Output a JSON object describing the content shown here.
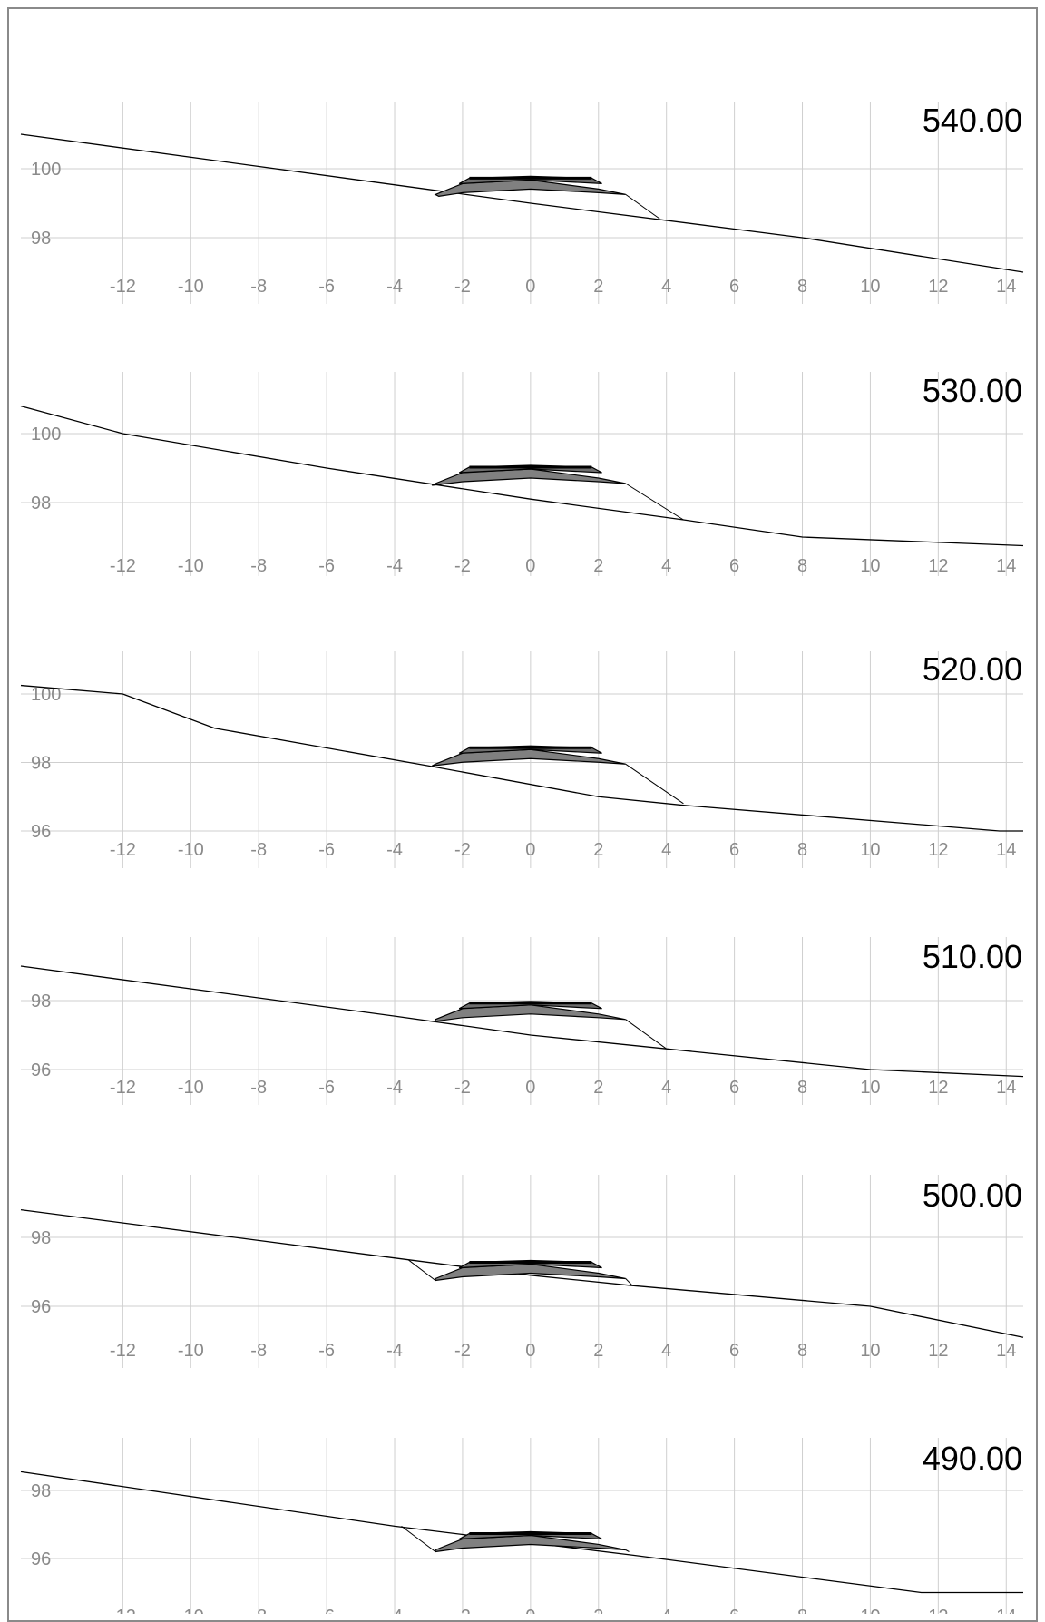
{
  "sections": [
    {
      "station": "540.00",
      "y_ticks": [
        100,
        98
      ],
      "ylim": [
        96.2,
        102.0
      ],
      "ground": [
        [
          -15,
          101.0
        ],
        [
          -3,
          99.4
        ],
        [
          0,
          99.0
        ],
        [
          8,
          98.0
        ],
        [
          14.5,
          97.0
        ]
      ],
      "template_foot": [
        -2.7,
        99.2
      ],
      "daylight": [
        3.8,
        98.55
      ]
    },
    {
      "station": "530.00",
      "y_ticks": [
        100,
        98
      ],
      "ylim": [
        96.1,
        101.8
      ],
      "ground": [
        [
          -15,
          100.8
        ],
        [
          -12,
          100.0
        ],
        [
          -6,
          99.0
        ],
        [
          0,
          98.1
        ],
        [
          4.5,
          97.5
        ],
        [
          8,
          97.0
        ],
        [
          14.5,
          96.75
        ]
      ],
      "template_foot": [
        -2.9,
        98.5
      ],
      "daylight": [
        4.5,
        97.5
      ]
    },
    {
      "station": "520.00",
      "y_ticks": [
        100,
        98,
        96
      ],
      "ylim": [
        94.9,
        101.2
      ],
      "ground": [
        [
          -15,
          100.25
        ],
        [
          -12,
          100.0
        ],
        [
          -9.3,
          99.0
        ],
        [
          -3,
          97.9
        ],
        [
          2,
          97.0
        ],
        [
          4.5,
          96.75
        ],
        [
          13.8,
          96.0
        ],
        [
          14.5,
          96.0
        ]
      ],
      "template_foot": [
        -2.9,
        97.9
      ],
      "daylight": [
        4.5,
        96.8
      ]
    },
    {
      "station": "510.00",
      "y_ticks": [
        98,
        96
      ],
      "ylim": [
        94.9,
        99.9
      ],
      "ground": [
        [
          -15,
          99.0
        ],
        [
          -4,
          97.55
        ],
        [
          0,
          97.0
        ],
        [
          4,
          96.6
        ],
        [
          10,
          96.0
        ],
        [
          14.5,
          95.8
        ]
      ],
      "template_foot": [
        -2.8,
        97.4
      ],
      "daylight": [
        4.0,
        96.6
      ]
    },
    {
      "station": "500.00",
      "y_ticks": [
        98,
        96
      ],
      "ylim": [
        94.9,
        99.9
      ],
      "ground": [
        [
          -15,
          98.8
        ],
        [
          -3.6,
          97.35
        ],
        [
          0,
          96.9
        ],
        [
          3,
          96.6
        ],
        [
          10,
          96.0
        ],
        [
          14.5,
          95.1
        ]
      ],
      "template_foot": [
        -2.8,
        96.75
      ],
      "daylight": [
        3.0,
        96.6
      ],
      "cut_hinge": [
        -3.6,
        97.35
      ]
    },
    {
      "station": "490.00",
      "y_ticks": [
        98,
        96
      ],
      "ylim": [
        95.2,
        99.9
      ],
      "ground": [
        [
          -15,
          98.55
        ],
        [
          -4,
          96.95
        ],
        [
          3,
          96.1
        ],
        [
          11.5,
          95.0
        ],
        [
          14.5,
          95.0
        ]
      ],
      "template_foot": [
        -2.8,
        96.2
      ],
      "daylight": [
        2.9,
        96.2
      ],
      "cut_hinge": [
        -3.8,
        96.95
      ]
    }
  ],
  "x_ticks": [
    -12,
    -10,
    -8,
    -6,
    -4,
    -2,
    0,
    2,
    4,
    6,
    8,
    10,
    12,
    14
  ]
}
